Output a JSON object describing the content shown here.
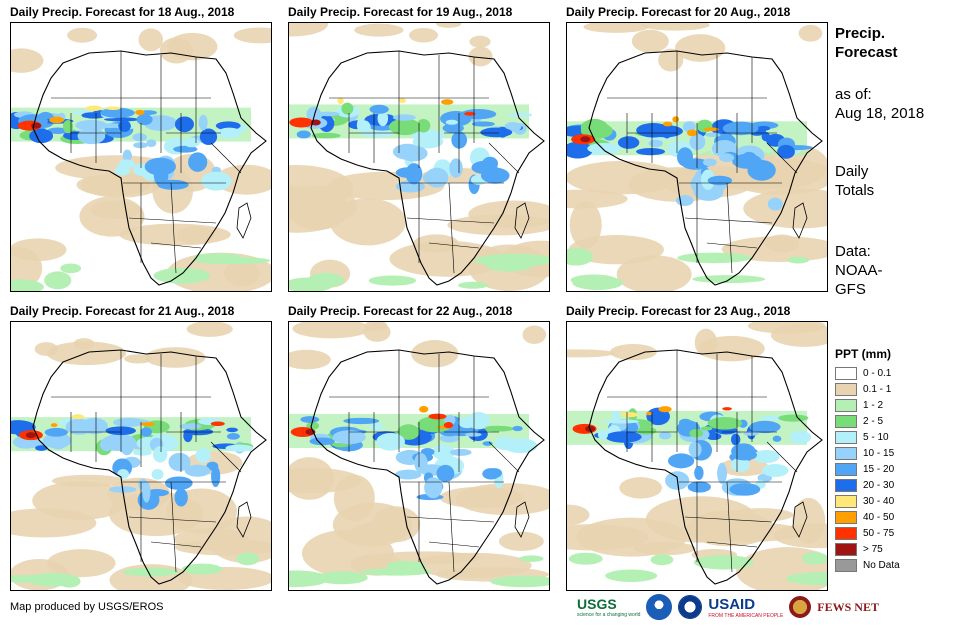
{
  "panels": [
    {
      "title": "Daily Precip. Forecast for 18 Aug., 2018"
    },
    {
      "title": "Daily Precip. Forecast for 19 Aug., 2018"
    },
    {
      "title": "Daily Precip. Forecast for 20 Aug., 2018"
    },
    {
      "title": "Daily Precip. Forecast for 21 Aug., 2018"
    },
    {
      "title": "Daily Precip. Forecast for 22 Aug., 2018"
    },
    {
      "title": "Daily Precip. Forecast for 23 Aug., 2018"
    }
  ],
  "sidebar": {
    "heading_line1": "Precip.",
    "heading_line2": "Forecast",
    "asof_line1": "as of:",
    "asof_line2": "Aug 18, 2018",
    "totals_line1": "Daily",
    "totals_line2": "Totals",
    "source_line1": "Data:",
    "source_line2": "NOAA-",
    "source_line3": "GFS"
  },
  "legend": {
    "title": "PPT (mm)",
    "items": [
      {
        "label": "0 - 0.1",
        "color": "#ffffff"
      },
      {
        "label": "0.1 - 1",
        "color": "#e8d4b0"
      },
      {
        "label": "1 - 2",
        "color": "#b4f0b4"
      },
      {
        "label": "2 - 5",
        "color": "#78dc78"
      },
      {
        "label": "5 - 10",
        "color": "#b4f0fa"
      },
      {
        "label": "10 - 15",
        "color": "#96d2fa"
      },
      {
        "label": "15 - 20",
        "color": "#50a5f5"
      },
      {
        "label": "20 - 30",
        "color": "#1e6eeb"
      },
      {
        "label": "30 - 40",
        "color": "#ffe878"
      },
      {
        "label": "40 - 50",
        "color": "#ffa000"
      },
      {
        "label": "50 - 75",
        "color": "#ff3200"
      },
      {
        "label": "> 75",
        "color": "#a01414"
      },
      {
        "label": "No Data",
        "color": "#999999"
      }
    ]
  },
  "footer": {
    "credit": "Map produced by USGS/EROS",
    "logo_usgs": "USGS",
    "logo_usgs_tag": "science for a changing world",
    "logo_usaid": "USAID",
    "logo_usaid_tag": "FROM THE AMERICAN PEOPLE",
    "logo_fews": "FEWS NET"
  }
}
